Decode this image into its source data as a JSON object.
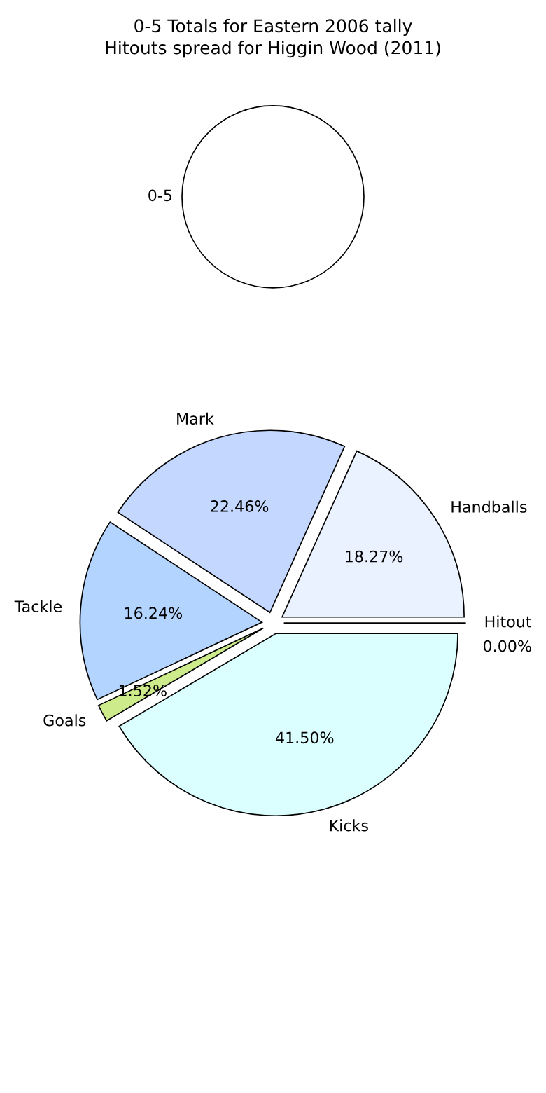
{
  "chart_data": [
    {
      "type": "pie",
      "title": "0-5 Totals for Eastern 2006 tally",
      "categories": [
        "0-5"
      ],
      "values": [
        100
      ],
      "colors": [
        "#ffffff"
      ],
      "legend": false
    },
    {
      "type": "pie",
      "title": "Hitouts spread for Higgin Wood (2011)",
      "categories": [
        "Hitout",
        "Handballs",
        "Mark",
        "Tackle",
        "Goals",
        "Kicks"
      ],
      "values": [
        0.0,
        18.27,
        22.46,
        16.24,
        1.52,
        41.5
      ],
      "value_labels": [
        "0.00%",
        "18.27%",
        "22.46%",
        "16.24%",
        "1.52%",
        "41.50%"
      ],
      "colors": [
        "#dddddd",
        "#eaf1ff",
        "#c4d8ff",
        "#b3d4ff",
        "#cdeb8b",
        "#dbffff"
      ],
      "legend": false
    }
  ]
}
